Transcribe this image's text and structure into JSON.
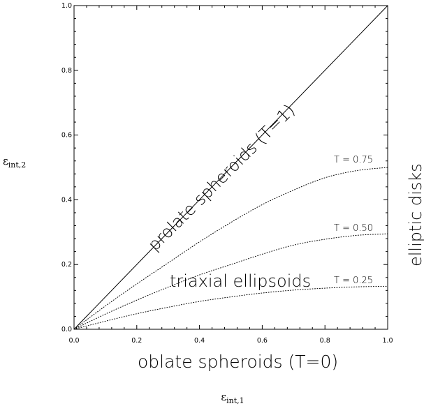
{
  "chart_data": {
    "type": "line",
    "xlabel_symbol": "ε",
    "xlabel_sub": "int,1",
    "ylabel_symbol": "ε",
    "ylabel_sub": "int,2",
    "xlim": [
      0.0,
      1.0
    ],
    "ylim": [
      0.0,
      1.0
    ],
    "xticks": [
      "0.0",
      "0.2",
      "0.4",
      "0.6",
      "0.8",
      "1.0"
    ],
    "yticks": [
      "0.0",
      "0.2",
      "0.4",
      "0.6",
      "0.8",
      "1.0"
    ],
    "grid": false,
    "series": [
      {
        "name": "prolate spheroids (T=1)",
        "style": "solid",
        "x": [
          0.0,
          1.0
        ],
        "y": [
          0.0,
          1.0
        ]
      },
      {
        "name": "T = 0.75",
        "style": "dotted",
        "x": [
          0.0,
          0.1,
          0.2,
          0.3,
          0.4,
          0.5,
          0.6,
          0.7,
          0.8,
          0.9,
          1.0
        ],
        "y": [
          0.0,
          0.072,
          0.14,
          0.205,
          0.27,
          0.33,
          0.385,
          0.43,
          0.468,
          0.49,
          0.5
        ]
      },
      {
        "name": "T = 0.50",
        "style": "dotted",
        "x": [
          0.0,
          0.1,
          0.2,
          0.3,
          0.4,
          0.5,
          0.6,
          0.7,
          0.8,
          0.9,
          1.0
        ],
        "y": [
          0.0,
          0.047,
          0.09,
          0.13,
          0.168,
          0.2,
          0.232,
          0.26,
          0.278,
          0.29,
          0.295
        ]
      },
      {
        "name": "T = 0.25",
        "style": "dotted",
        "x": [
          0.0,
          0.1,
          0.2,
          0.3,
          0.4,
          0.5,
          0.6,
          0.7,
          0.8,
          0.9,
          1.0
        ],
        "y": [
          0.0,
          0.025,
          0.048,
          0.068,
          0.086,
          0.1,
          0.112,
          0.121,
          0.127,
          0.131,
          0.133
        ]
      }
    ],
    "annotations": {
      "prolate": "prolate spheroids (T=1)",
      "triaxial": "triaxial ellipsoids",
      "elliptic": "elliptic disks",
      "oblate": "oblate spheroids (T=0)",
      "t075": "T = 0.75",
      "t050": "T = 0.50",
      "t025": "T = 0.25"
    }
  }
}
